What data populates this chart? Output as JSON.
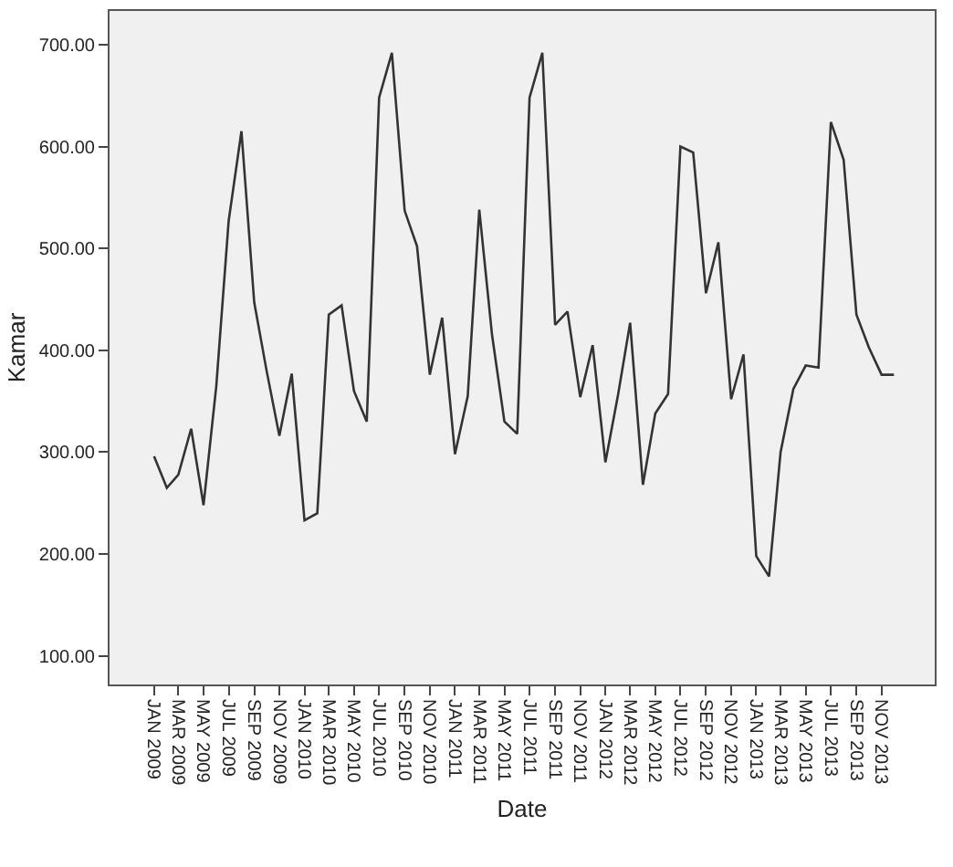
{
  "chart_data": {
    "type": "line",
    "xlabel": "Date",
    "ylabel": "Kamar",
    "x": [
      "2009-01",
      "2009-02",
      "2009-03",
      "2009-04",
      "2009-05",
      "2009-06",
      "2009-07",
      "2009-08",
      "2009-09",
      "2009-10",
      "2009-11",
      "2009-12",
      "2010-01",
      "2010-02",
      "2010-03",
      "2010-04",
      "2010-05",
      "2010-06",
      "2010-07",
      "2010-08",
      "2010-09",
      "2010-10",
      "2010-11",
      "2010-12",
      "2011-01",
      "2011-02",
      "2011-03",
      "2011-04",
      "2011-05",
      "2011-06",
      "2011-07",
      "2011-08",
      "2011-09",
      "2011-10",
      "2011-11",
      "2011-12",
      "2012-01",
      "2012-02",
      "2012-03",
      "2012-04",
      "2012-05",
      "2012-06",
      "2012-07",
      "2012-08",
      "2012-09",
      "2012-10",
      "2012-11",
      "2012-12",
      "2013-01",
      "2013-02",
      "2013-03",
      "2013-04",
      "2013-05",
      "2013-06",
      "2013-07",
      "2013-08",
      "2013-09",
      "2013-10",
      "2013-11",
      "2013-12"
    ],
    "series": [
      {
        "color": "#333333",
        "values": [
          296,
          265,
          278,
          323,
          248,
          365,
          527,
          615,
          447,
          380,
          316,
          377,
          233,
          240,
          435,
          444,
          360,
          330,
          648,
          692,
          537,
          502,
          376,
          432,
          298,
          355,
          538,
          415,
          330,
          318,
          648,
          692,
          425,
          438,
          354,
          405,
          290,
          357,
          427,
          268,
          338,
          357,
          600,
          594,
          456,
          506,
          352,
          396,
          198,
          178,
          300,
          362,
          385,
          383,
          624,
          587,
          435,
          403,
          376,
          376
        ]
      }
    ],
    "xlim": [
      "2008-09-15",
      "2014-03-10"
    ],
    "xticks": [
      {
        "value": "2009-01",
        "label": "JAN 2009"
      },
      {
        "value": "2009-03",
        "label": "MAR 2009"
      },
      {
        "value": "2009-05",
        "label": "MAY 2009"
      },
      {
        "value": "2009-07",
        "label": "JUL 2009"
      },
      {
        "value": "2009-09",
        "label": "SEP 2009"
      },
      {
        "value": "2009-11",
        "label": "NOV 2009"
      },
      {
        "value": "2010-01",
        "label": "JAN 2010"
      },
      {
        "value": "2010-03",
        "label": "MAR 2010"
      },
      {
        "value": "2010-05",
        "label": "MAY 2010"
      },
      {
        "value": "2010-07",
        "label": "JUL 2010"
      },
      {
        "value": "2010-09",
        "label": "SEP 2010"
      },
      {
        "value": "2010-11",
        "label": "NOV 2010"
      },
      {
        "value": "2011-01",
        "label": "JAN 2011"
      },
      {
        "value": "2011-03",
        "label": "MAR 2011"
      },
      {
        "value": "2011-05",
        "label": "MAY 2011"
      },
      {
        "value": "2011-07",
        "label": "JUL 2011"
      },
      {
        "value": "2011-09",
        "label": "SEP 2011"
      },
      {
        "value": "2011-11",
        "label": "NOV 2011"
      },
      {
        "value": "2012-01",
        "label": "JAN 2012"
      },
      {
        "value": "2012-03",
        "label": "MAR 2012"
      },
      {
        "value": "2012-05",
        "label": "MAY 2012"
      },
      {
        "value": "2012-07",
        "label": "JUL 2012"
      },
      {
        "value": "2012-09",
        "label": "SEP 2012"
      },
      {
        "value": "2012-11",
        "label": "NOV 2012"
      },
      {
        "value": "2013-01",
        "label": "JAN 2013"
      },
      {
        "value": "2013-03",
        "label": "MAR 2013"
      },
      {
        "value": "2013-05",
        "label": "MAY 2013"
      },
      {
        "value": "2013-07",
        "label": "JUL 2013"
      },
      {
        "value": "2013-09",
        "label": "SEP 2013"
      },
      {
        "value": "2013-11",
        "label": "NOV 2013"
      }
    ],
    "ylim": [
      72,
      733
    ],
    "yticks": [
      {
        "value": 100,
        "label": "100.00"
      },
      {
        "value": 200,
        "label": "200.00"
      },
      {
        "value": 300,
        "label": "300.00"
      },
      {
        "value": 400,
        "label": "400.00"
      },
      {
        "value": 500,
        "label": "500.00"
      },
      {
        "value": 600,
        "label": "600.00"
      },
      {
        "value": 700,
        "label": "700.00"
      }
    ],
    "grid": false,
    "marker": "none",
    "line_style": "solid"
  }
}
